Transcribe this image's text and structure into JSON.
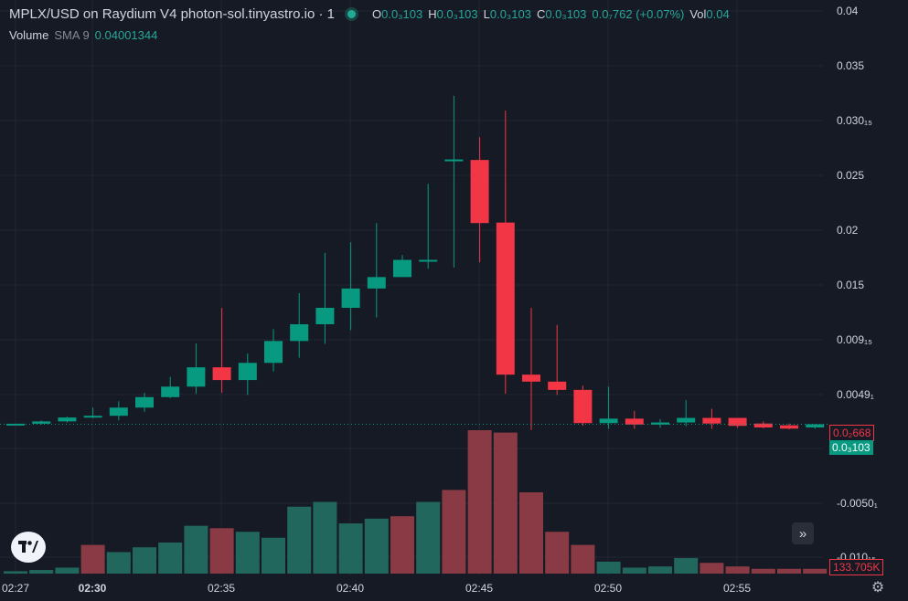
{
  "legend": {
    "title": "MPLX/USD on Raydium V4 photon-sol.tinyastro.io · 1",
    "o_label": "O",
    "o_value": "0.0₃103",
    "h_label": "H",
    "h_value": "0.0₃103",
    "l_label": "L",
    "l_value": "0.0₃103",
    "c_label": "C",
    "c_value": "0.0₃103",
    "change": "0.0₇762 (+0.07%)",
    "vol_label": "Vol",
    "vol_value": "0.04"
  },
  "volume_legend": {
    "name": "Volume",
    "param": "SMA 9",
    "value": "0.04001344"
  },
  "price_tags": {
    "last_close": "0.0₃103",
    "other": "0.0₂668",
    "volume_value": "133.705K"
  },
  "buttons": {
    "scroll_right": "»",
    "settings": "⚙"
  },
  "colors": {
    "background": "#161a25",
    "up": "#089981",
    "down": "#f23645",
    "vol_up": "#22675e",
    "vol_down": "#8a3a44",
    "grid": "#232732",
    "axis_text": "#d1d4dc"
  },
  "chart_data": {
    "type": "candlestick",
    "x": [
      "02:27",
      "02:28",
      "02:29",
      "02:30",
      "02:31",
      "02:32",
      "02:33",
      "02:34",
      "02:35",
      "02:36",
      "02:37",
      "02:38",
      "02:39",
      "02:40",
      "02:41",
      "02:42",
      "02:43",
      "02:44",
      "02:45",
      "02:46",
      "02:47",
      "02:48",
      "02:49",
      "02:50",
      "02:51",
      "02:52",
      "02:53",
      "02:54",
      "02:55",
      "02:56",
      "02:57",
      "02:58"
    ],
    "open": [
      0.00103,
      0.00108,
      0.0013,
      0.00167,
      0.00183,
      0.0026,
      0.00359,
      0.00458,
      0.0064,
      0.0052,
      0.00682,
      0.00888,
      0.01046,
      0.01201,
      0.01383,
      0.01491,
      0.01653,
      0.026,
      0.02595,
      0.02005,
      0.00571,
      0.00505,
      0.00427,
      0.00114,
      0.00156,
      0.001,
      0.0012,
      0.00163,
      0.00163,
      0.0011,
      0.00093,
      0.00073
    ],
    "close": [
      0.00108,
      0.0013,
      0.00167,
      0.00183,
      0.0026,
      0.00359,
      0.00458,
      0.0064,
      0.0052,
      0.00682,
      0.00888,
      0.01046,
      0.01201,
      0.01383,
      0.01491,
      0.01653,
      0.01653,
      0.026,
      0.02,
      0.00571,
      0.00505,
      0.00427,
      0.00114,
      0.00156,
      0.001,
      0.0012,
      0.00163,
      0.0011,
      0.00088,
      0.00073,
      0.00062,
      0.00103
    ],
    "high": [
      0.00108,
      0.0014,
      0.00175,
      0.0026,
      0.0032,
      0.004,
      0.0055,
      0.00865,
      0.012,
      0.0077,
      0.01,
      0.0134,
      0.0172,
      0.0182,
      0.02,
      0.017,
      0.0237,
      0.032,
      0.0281,
      0.0306,
      0.012,
      0.0104,
      0.00468,
      0.00458,
      0.0023,
      0.0015,
      0.0033,
      0.0025,
      0.00145,
      0.0013,
      0.0011,
      0.00103
    ],
    "low": [
      0.00095,
      0.001,
      0.0012,
      0.0016,
      0.0014,
      0.0022,
      0.0035,
      0.0039,
      0.004,
      0.0038,
      0.006,
      0.0073,
      0.0086,
      0.0099,
      0.0111,
      0.0149,
      0.0157,
      0.0158,
      0.0163,
      0.0039,
      0.0005,
      0.0038,
      0.0009,
      0.0006,
      0.0006,
      0.0007,
      0.00085,
      0.0006,
      0.0007,
      0.00065,
      0.00055,
      0.0006
    ],
    "volume_up": [
      true,
      true,
      true,
      false,
      true,
      true,
      true,
      true,
      false,
      true,
      true,
      true,
      true,
      true,
      true,
      false,
      true,
      false,
      false,
      false,
      false,
      false,
      false,
      true,
      true,
      true,
      true,
      false,
      false,
      false,
      false,
      false
    ],
    "volume": [
      2,
      3,
      5,
      24,
      18,
      22,
      26,
      40,
      38,
      35,
      30,
      56,
      60,
      42,
      46,
      48,
      60,
      70,
      120,
      118,
      68,
      35,
      24,
      10,
      5,
      6,
      13,
      9,
      6,
      4,
      4,
      4
    ],
    "ytick_labels": [
      "0.04",
      "0.035",
      "0.030₁₅",
      "0.025",
      "0.02",
      "0.015",
      "0.009₁₅",
      "0.0049₁",
      "-0.0050₁",
      "-0.010₁₅"
    ],
    "xtick_labels": [
      "02:27",
      "02:30",
      "02:35",
      "02:40",
      "02:45",
      "02:50",
      "02:55"
    ],
    "volume_sma": 9
  }
}
